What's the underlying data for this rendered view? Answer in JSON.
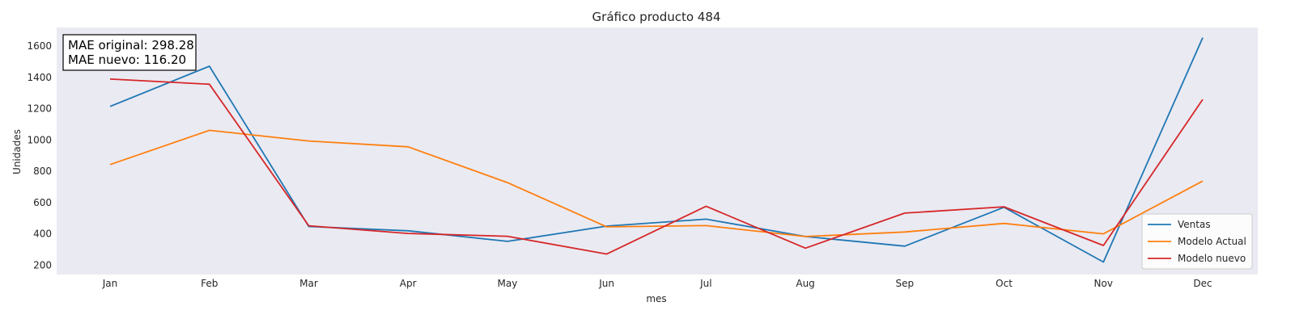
{
  "chart_data": {
    "type": "line",
    "title": "Gráfico producto 484",
    "xlabel": "mes",
    "ylabel": "Unidades",
    "categories": [
      "Jan",
      "Feb",
      "Mar",
      "Apr",
      "May",
      "Jun",
      "Jul",
      "Aug",
      "Sep",
      "Oct",
      "Nov",
      "Dec"
    ],
    "yticks": [
      200,
      400,
      600,
      800,
      1000,
      1200,
      1400,
      1600
    ],
    "ylim": [
      140,
      1720
    ],
    "grid": false,
    "legend_position": "lower-right",
    "series": [
      {
        "name": "Ventas",
        "color": "#1f77b4",
        "values": [
          1215,
          1472,
          447,
          420,
          352,
          450,
          494,
          383,
          322,
          570,
          220,
          1655
        ]
      },
      {
        "name": "Modelo Actual",
        "color": "#ff7f0e",
        "values": [
          843,
          1062,
          994,
          957,
          728,
          445,
          453,
          383,
          412,
          467,
          400,
          738
        ]
      },
      {
        "name": "Modelo nuevo",
        "color": "#d62728",
        "values": [
          1390,
          1357,
          452,
          403,
          385,
          271,
          577,
          309,
          533,
          573,
          326,
          1260
        ]
      }
    ],
    "annotation": [
      "MAE original: 298.28",
      "MAE nuevo: 116.20"
    ]
  }
}
